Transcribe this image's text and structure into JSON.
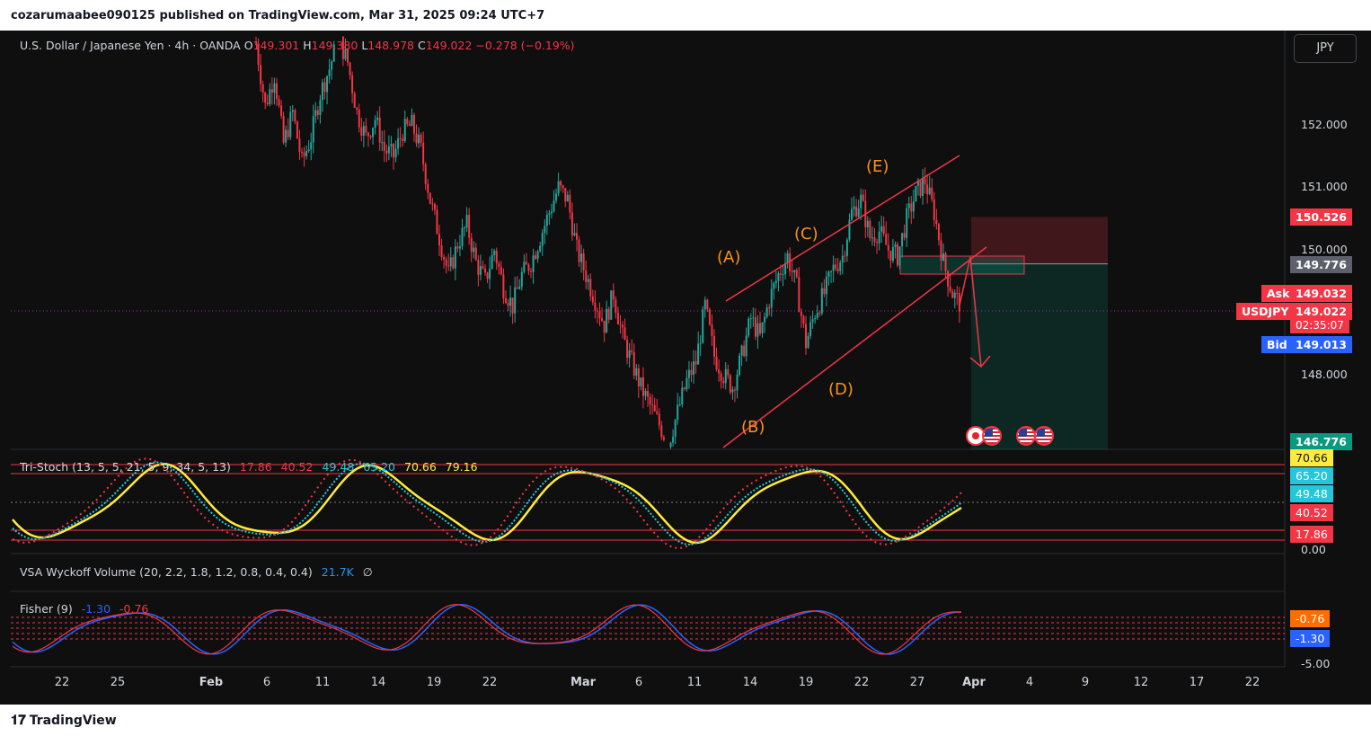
{
  "header": {
    "published_text": "cozarumaabee090125 published on TradingView.com, Mar 31, 2025 09:24 UTC+7"
  },
  "footer": {
    "brand": "TradingView",
    "logo_icon": "tradingview-logo-icon"
  },
  "legend": {
    "symbol": "U.S. Dollar / Japanese Yen · 4h · OANDA",
    "o_label": "O",
    "o_value": "149.301",
    "h_label": "H",
    "h_value": "149.380",
    "l_label": "L",
    "l_value": "148.978",
    "c_label": "C",
    "c_value": "149.022",
    "change": "−0.278 (−0.19%)"
  },
  "currency_button": "JPY",
  "colors": {
    "up": "#26a69a",
    "down": "#f23645",
    "wave_label": "#f7931a",
    "bid": "#2962ff",
    "stoch_yellow": "#ffeb3b",
    "stoch_cyan": "#26c6da",
    "fisher_blue": "#2962ff",
    "fisher_red": "#f23645"
  },
  "chart_data": [
    {
      "type": "candlestick",
      "title": "U.S. Dollar / Japanese Yen · 4h · OANDA",
      "x_ticks": [
        "22",
        "25",
        "Feb",
        "6",
        "11",
        "14",
        "19",
        "22",
        "Mar",
        "6",
        "11",
        "14",
        "19",
        "22",
        "27",
        "Apr",
        "4",
        "9",
        "12",
        "17",
        "22"
      ],
      "y_ticks": [
        "152.000",
        "151.000",
        "150.000",
        "148.000"
      ],
      "ylim": [
        146.3,
        153.2
      ],
      "close_path": [
        [
          0,
          153.3
        ],
        [
          4,
          152.3
        ],
        [
          8,
          152.8
        ],
        [
          12,
          151.7
        ],
        [
          16,
          152.2
        ],
        [
          20,
          151.4
        ],
        [
          24,
          151.8
        ],
        [
          28,
          152.5
        ],
        [
          32,
          152.9
        ],
        [
          36,
          153.4
        ],
        [
          40,
          153.0
        ],
        [
          44,
          152.2
        ],
        [
          48,
          151.8
        ],
        [
          52,
          152.1
        ],
        [
          56,
          151.6
        ],
        [
          60,
          151.5
        ],
        [
          64,
          151.9
        ],
        [
          68,
          152.0
        ],
        [
          72,
          151.6
        ],
        [
          76,
          150.8
        ],
        [
          80,
          150.2
        ],
        [
          84,
          149.6
        ],
        [
          88,
          150.1
        ],
        [
          92,
          150.4
        ],
        [
          96,
          149.8
        ],
        [
          100,
          149.5
        ],
        [
          104,
          150.0
        ],
        [
          108,
          149.4
        ],
        [
          112,
          149.1
        ],
        [
          116,
          149.6
        ],
        [
          120,
          149.8
        ],
        [
          124,
          150.2
        ],
        [
          128,
          150.6
        ],
        [
          132,
          151.0
        ],
        [
          136,
          150.8
        ],
        [
          140,
          150.0
        ],
        [
          144,
          149.6
        ],
        [
          148,
          149.2
        ],
        [
          152,
          148.8
        ],
        [
          156,
          149.3
        ],
        [
          160,
          148.6
        ],
        [
          164,
          148.2
        ],
        [
          168,
          147.8
        ],
        [
          172,
          147.5
        ],
        [
          176,
          147.2
        ],
        [
          180,
          146.9
        ],
        [
          184,
          147.4
        ],
        [
          188,
          147.9
        ],
        [
          192,
          148.2
        ],
        [
          196,
          149.1
        ],
        [
          200,
          148.3
        ],
        [
          204,
          148.0
        ],
        [
          208,
          147.8
        ],
        [
          212,
          148.3
        ],
        [
          216,
          148.9
        ],
        [
          220,
          148.6
        ],
        [
          224,
          149.2
        ],
        [
          228,
          149.6
        ],
        [
          232,
          149.9
        ],
        [
          236,
          149.4
        ],
        [
          240,
          148.5
        ],
        [
          244,
          149.0
        ],
        [
          248,
          149.3
        ],
        [
          252,
          149.7
        ],
        [
          256,
          149.9
        ],
        [
          260,
          150.6
        ],
        [
          264,
          150.8
        ],
        [
          268,
          150.2
        ],
        [
          272,
          150.3
        ],
        [
          276,
          150.0
        ],
        [
          280,
          149.9
        ],
        [
          284,
          150.5
        ],
        [
          288,
          150.9
        ],
        [
          292,
          151.1
        ],
        [
          296,
          150.6
        ],
        [
          300,
          149.8
        ],
        [
          304,
          149.3
        ],
        [
          308,
          149.1
        ]
      ]
    },
    {
      "type": "line",
      "title": "Tri-Stoch (13, 5, 5, 21, 5, 9, 34, 5, 13)",
      "values_shown": [
        "17.86",
        "40.52",
        "49.48",
        "65.20",
        "70.66",
        "79.16"
      ],
      "axis_labels": [
        "70.66",
        "65.20",
        "49.48",
        "40.52",
        "17.86",
        "0.00"
      ],
      "ylim": [
        0,
        100
      ]
    },
    {
      "type": "line",
      "title": "VSA Wyckoff Volume (20, 2.2, 1.8, 1.2, 0.8, 0.4, 0.4)",
      "values_shown": [
        "21.7K",
        "∅"
      ]
    },
    {
      "type": "line",
      "title": "Fisher (9)",
      "values_shown": [
        "-1.30",
        "-0.76"
      ],
      "axis_labels": [
        "-0.76",
        "-1.30",
        "-5.00"
      ]
    }
  ],
  "price_badges": {
    "stop": "150.526",
    "entry": "149.776",
    "ask_label": "Ask",
    "ask": "149.032",
    "symbol_label": "USDJPY",
    "last": "149.022",
    "countdown": "02:35:07",
    "bid_label": "Bid",
    "bid": "149.013",
    "target": "146.776"
  },
  "wave_labels": {
    "a": "(A)",
    "b": "(B)",
    "c": "(C)",
    "d": "(D)",
    "e": "(E)"
  },
  "event_icons": [
    "japan-flag-icon",
    "us-flag-icon"
  ]
}
